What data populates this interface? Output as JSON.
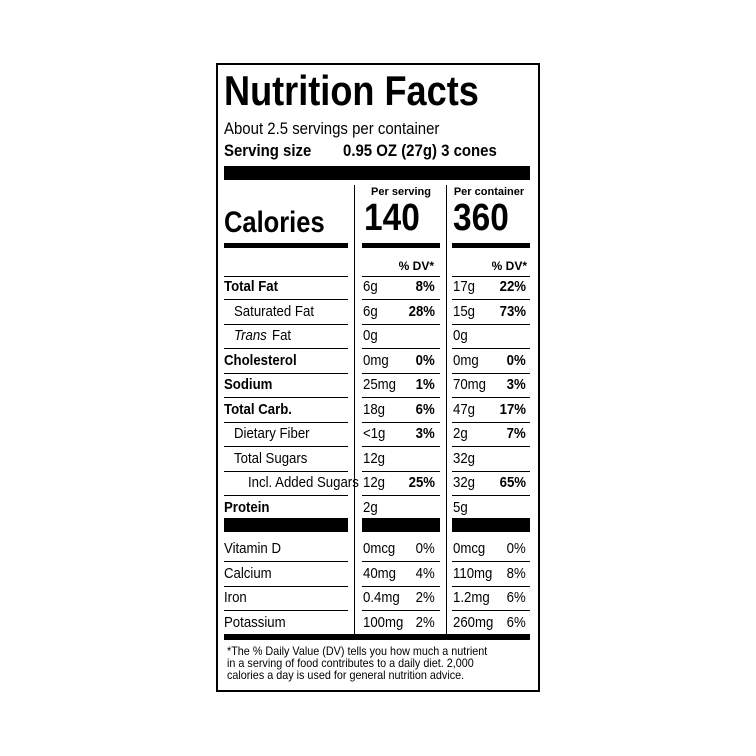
{
  "title": "Nutrition Facts",
  "servings": "About 2.5 servings per container",
  "serving_size": {
    "label": "Serving size",
    "value": "0.95 OZ (27g) 3 cones"
  },
  "columns": {
    "serving": "Per serving",
    "container": "Per container"
  },
  "calories": {
    "label": "Calories",
    "serving": 140,
    "container": 360
  },
  "dv_header": "% DV*",
  "nutrients": [
    {
      "name": "Total Fat",
      "serving_amount": "6g",
      "serving_dv": "8%",
      "container_amount": "17g",
      "container_dv": "22%"
    },
    {
      "name": "Saturated Fat",
      "serving_amount": "6g",
      "serving_dv": "28%",
      "container_amount": "15g",
      "container_dv": "73%"
    },
    {
      "name_italic": "Trans",
      "name": "Fat",
      "serving_amount": "0g",
      "container_amount": "0g"
    },
    {
      "name": "Cholesterol",
      "serving_amount": "0mg",
      "serving_dv": "0%",
      "container_amount": "0mg",
      "container_dv": "0%"
    },
    {
      "name": "Sodium",
      "serving_amount": "25mg",
      "serving_dv": "1%",
      "container_amount": "70mg",
      "container_dv": "3%"
    },
    {
      "name": "Total Carb.",
      "serving_amount": "18g",
      "serving_dv": "6%",
      "container_amount": "47g",
      "container_dv": "17%"
    },
    {
      "name": "Dietary Fiber",
      "serving_amount": "<1g",
      "serving_dv": "3%",
      "container_amount": "2g",
      "container_dv": "7%"
    },
    {
      "name": "Total Sugars",
      "serving_amount": "12g",
      "container_amount": "32g"
    },
    {
      "name": "Incl. Added Sugars",
      "serving_amount": "12g",
      "serving_dv": "25%",
      "container_amount": "32g",
      "container_dv": "65%"
    },
    {
      "name": "Protein",
      "serving_amount": "2g",
      "container_amount": "5g"
    }
  ],
  "vitamins": [
    {
      "name": "Vitamin D",
      "serving_amount": "0mcg",
      "serving_dv": "0%",
      "container_amount": "0mcg",
      "container_dv": "0%"
    },
    {
      "name": "Calcium",
      "serving_amount": "40mg",
      "serving_dv": "4%",
      "container_amount": "110mg",
      "container_dv": "8%"
    },
    {
      "name": "Iron",
      "serving_amount": "0.4mg",
      "serving_dv": "2%",
      "container_amount": "1.2mg",
      "container_dv": "6%"
    },
    {
      "name": "Potassium",
      "serving_amount": "100mg",
      "serving_dv": "2%",
      "container_amount": "260mg",
      "container_dv": "6%"
    }
  ],
  "footnote": [
    "*The % Daily Value (DV) tells you how much a nutrient",
    "in a serving of food contributes to a daily diet. 2,000",
    "calories a day is used for general nutrition advice."
  ]
}
